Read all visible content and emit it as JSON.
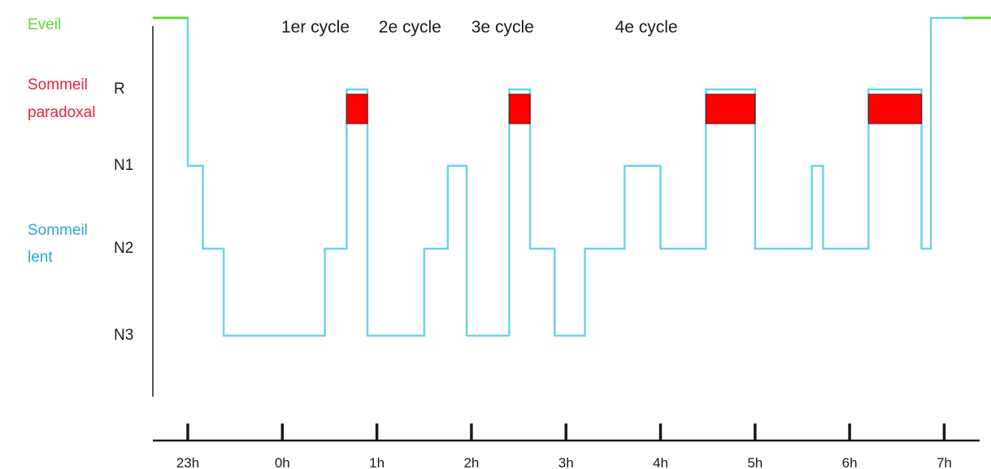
{
  "chart_data": {
    "type": "line",
    "chart_subtype": "hypnogram",
    "colors": {
      "wake": "#66d23c",
      "paradoxal": "#e8233a",
      "lent": "#27a8df",
      "trace": "#6fd3ea",
      "rem_fill": "#ff0000",
      "axis": "#1a1a1a"
    },
    "group_labels": [
      {
        "key": "eveil",
        "lines": [
          "Eveil"
        ],
        "color": "#66d23c",
        "row": "Eveil"
      },
      {
        "key": "paradoxal",
        "lines": [
          "Sommeil",
          "paradoxal"
        ],
        "color": "#e8233a",
        "row": "R"
      },
      {
        "key": "lent",
        "lines": [
          "Sommeil",
          "lent"
        ],
        "color": "#27a8df",
        "row": "N2"
      }
    ],
    "stage_labels": [
      "R",
      "N1",
      "N2",
      "N3"
    ],
    "stages": [
      "Eveil",
      "R",
      "N1",
      "N2",
      "N3"
    ],
    "cycle_labels": [
      {
        "text": "1er cycle",
        "x": 0.35
      },
      {
        "text": "2e cycle",
        "x": 1.35
      },
      {
        "text": "3e cycle",
        "x": 2.33
      },
      {
        "text": "4e cycle",
        "x": 3.85
      }
    ],
    "x_ticks": [
      {
        "value": -1,
        "label": "23h"
      },
      {
        "value": 0,
        "label": "0h"
      },
      {
        "value": 1,
        "label": "1h"
      },
      {
        "value": 2,
        "label": "2h"
      },
      {
        "value": 3,
        "label": "3h"
      },
      {
        "value": 4,
        "label": "4h"
      },
      {
        "value": 5,
        "label": "5h"
      },
      {
        "value": 6,
        "label": "6h"
      },
      {
        "value": 7,
        "label": "7h"
      }
    ],
    "xlim": [
      -1.37,
      8.1
    ],
    "wake_start": [
      -1.37,
      -1.0
    ],
    "wake_end": [
      7.2,
      8.1
    ],
    "rem_blocks": [
      {
        "start": 0.68,
        "end": 0.9
      },
      {
        "start": 2.4,
        "end": 2.62
      },
      {
        "start": 4.48,
        "end": 5.0
      },
      {
        "start": 6.2,
        "end": 6.76
      }
    ],
    "hypnogram": [
      {
        "t": -1.37,
        "stage": "Eveil"
      },
      {
        "t": -1.0,
        "stage": "N1"
      },
      {
        "t": -0.84,
        "stage": "N2"
      },
      {
        "t": -0.62,
        "stage": "N3"
      },
      {
        "t": 0.45,
        "stage": "N2"
      },
      {
        "t": 0.68,
        "stage": "R"
      },
      {
        "t": 0.9,
        "stage": "N3"
      },
      {
        "t": 1.5,
        "stage": "N2"
      },
      {
        "t": 1.75,
        "stage": "N1"
      },
      {
        "t": 1.95,
        "stage": "N3"
      },
      {
        "t": 2.4,
        "stage": "R"
      },
      {
        "t": 2.62,
        "stage": "N2"
      },
      {
        "t": 2.88,
        "stage": "N3"
      },
      {
        "t": 3.2,
        "stage": "N2"
      },
      {
        "t": 3.62,
        "stage": "N1"
      },
      {
        "t": 4.0,
        "stage": "N2"
      },
      {
        "t": 4.48,
        "stage": "R"
      },
      {
        "t": 5.0,
        "stage": "N2"
      },
      {
        "t": 5.6,
        "stage": "N1"
      },
      {
        "t": 5.72,
        "stage": "N2"
      },
      {
        "t": 6.2,
        "stage": "R"
      },
      {
        "t": 6.76,
        "stage": "N2"
      },
      {
        "t": 6.86,
        "stage": "Eveil"
      },
      {
        "t": 8.1,
        "stage": "Eveil"
      }
    ]
  }
}
